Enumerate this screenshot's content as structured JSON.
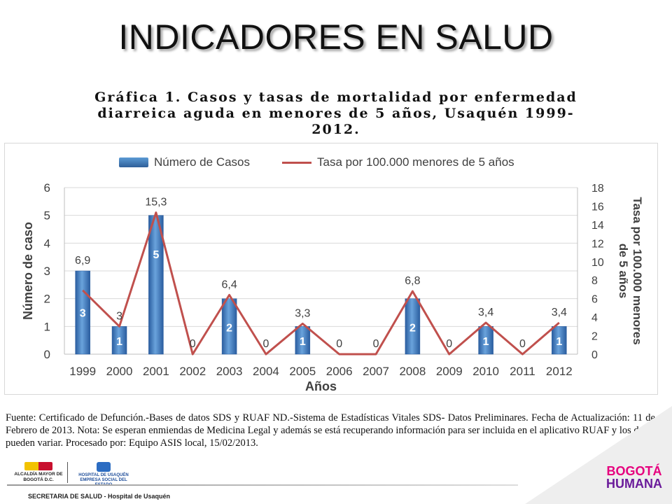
{
  "slide": {
    "title": "INDICADORES EN SALUD"
  },
  "chart_caption": "Gráfica 1. Casos y tasas de mortalidad por enfermedad diarreica aguda en menores de 5 años, Usaquén 1999-2012.",
  "chart_data": {
    "type": "bar",
    "categories": [
      "1999",
      "2000",
      "2001",
      "2002",
      "2003",
      "2004",
      "2005",
      "2006",
      "2007",
      "2008",
      "2009",
      "2010",
      "2011",
      "2012"
    ],
    "series": [
      {
        "name": "Número de Casos",
        "kind": "bar",
        "axis": "left",
        "values": [
          3,
          1,
          5,
          0,
          2,
          0,
          1,
          0,
          0,
          2,
          0,
          1,
          0,
          1
        ],
        "color": "#3c78c0"
      },
      {
        "name": "Tasa por 100.000 menores de 5 años",
        "kind": "line",
        "axis": "right",
        "values": [
          6.9,
          3,
          15.3,
          0,
          6.4,
          0,
          3.3,
          0,
          0,
          6.8,
          0,
          3.4,
          0,
          3.4
        ],
        "color": "#c0504d"
      }
    ],
    "bar_labels": [
      "3",
      "1",
      "5",
      "",
      "2",
      "",
      "1",
      "",
      "",
      "2",
      "",
      "1",
      "",
      "1"
    ],
    "line_labels": [
      "6,9",
      "3",
      "15,3",
      "0",
      "6,4",
      "0",
      "3,3",
      "0",
      "0",
      "6,8",
      "0",
      "3,4",
      "0",
      "3,4"
    ],
    "xlabel": "Años",
    "ylabel": "Número de caso",
    "y2label": "Tasa por 100.000 menores de 5 años",
    "ylim": [
      0,
      6
    ],
    "y2lim": [
      0,
      18
    ],
    "yticks": [
      "0",
      "1",
      "2",
      "3",
      "4",
      "5",
      "6"
    ],
    "y2ticks": [
      "0",
      "2",
      "4",
      "6",
      "8",
      "10",
      "12",
      "14",
      "16",
      "18"
    ],
    "grid": true,
    "legend_position": "top"
  },
  "legend": {
    "bars": "Número de Casos",
    "line": "Tasa por 100.000 menores de 5 años"
  },
  "source_note": "Fuente: Certificado de Defunción.-Bases de datos SDS y RUAF ND.-Sistema de Estadísticas Vitales SDS- Datos Preliminares. Fecha de Actualización: 11 de Febrero de 2013. Nota: Se esperan enmiendas de Medicina Legal y además se está recuperando información para ser incluida en el aplicativo RUAF y los datos pueden variar. Procesado por: Equipo ASIS local, 15/02/2013.",
  "footer": {
    "org_text": "SECRETARIA DE SALUD - Hospital de Usaquén",
    "alcaldia_logo_text": "ALCALDÍA MAYOR DE BOGOTÁ D.C.",
    "hospital_logo_text": "HOSPITAL DE USAQUÉN EMPRESA SOCIAL DEL ESTADO",
    "bogota_logo_line1": "BOGOTÁ",
    "bogota_logo_line2": "HUMANA"
  }
}
